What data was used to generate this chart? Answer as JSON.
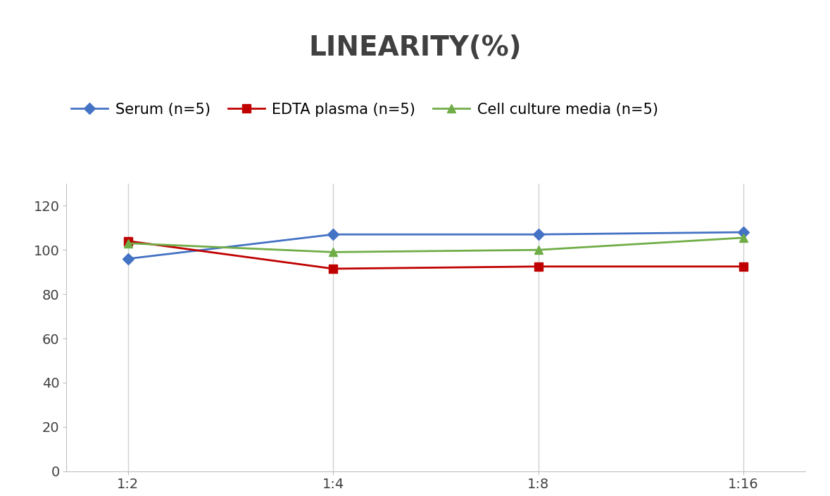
{
  "title": "LINEARITY(%)",
  "x_labels": [
    "1:2",
    "1:4",
    "1:8",
    "1:16"
  ],
  "x_positions": [
    0,
    1,
    2,
    3
  ],
  "series": [
    {
      "name": "Serum (n=5)",
      "values": [
        96,
        107,
        107,
        108
      ],
      "color": "#4472C4",
      "marker": "D",
      "linewidth": 2,
      "markersize": 8
    },
    {
      "name": "EDTA plasma (n=5)",
      "values": [
        104,
        91.5,
        92.5,
        92.5
      ],
      "color": "#C00000",
      "marker": "s",
      "linewidth": 2,
      "markersize": 8
    },
    {
      "name": "Cell culture media (n=5)",
      "values": [
        103,
        99,
        100,
        105.5
      ],
      "color": "#70AD47",
      "marker": "^",
      "linewidth": 2,
      "markersize": 8
    }
  ],
  "ylim": [
    0,
    130
  ],
  "yticks": [
    0,
    20,
    40,
    60,
    80,
    100,
    120
  ],
  "background_color": "#ffffff",
  "title_fontsize": 28,
  "legend_fontsize": 15,
  "tick_fontsize": 14,
  "grid_color": "#d0d0d0",
  "title_color": "#404040",
  "tick_color": "#404040"
}
